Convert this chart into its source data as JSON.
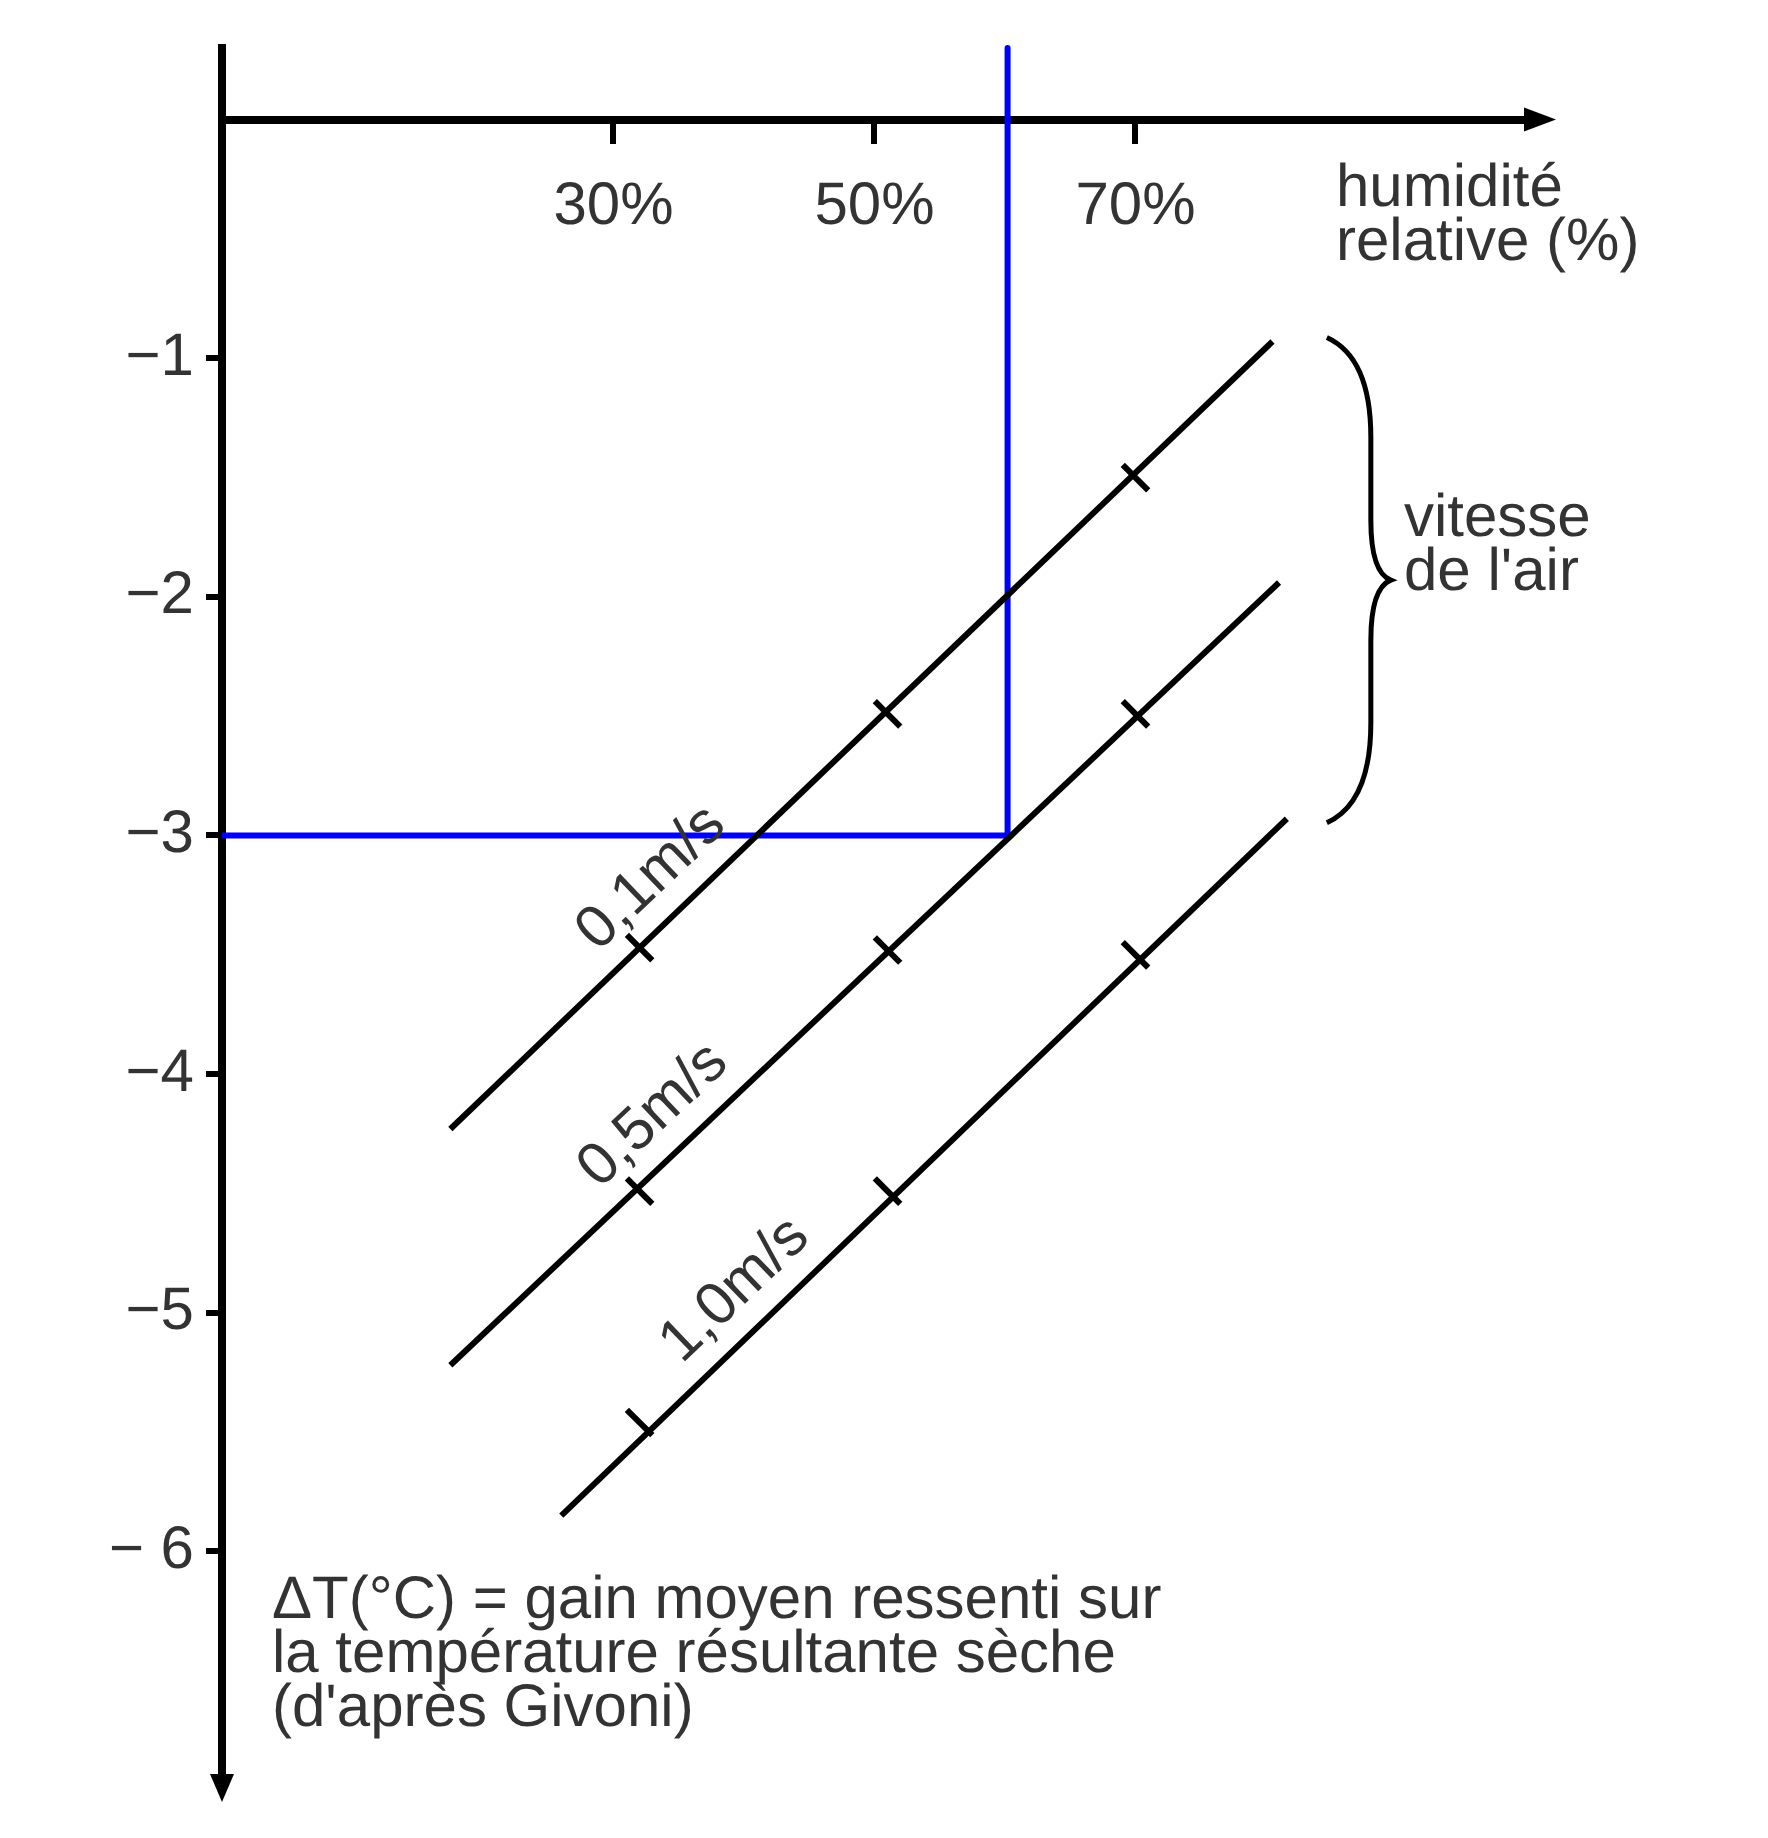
{
  "chart_data": {
    "type": "line",
    "xlabel": "humidité relative (%)",
    "ylabel": "ΔT(°C) = gain moyen ressenti sur la température résultante sèche (d'après Givoni)",
    "annotations": [
      "vitesse de l'air"
    ],
    "xlim": [
      0,
      101
    ],
    "ylim": [
      -7,
      0.3
    ],
    "xticks": [
      {
        "value": 30,
        "label": "30%"
      },
      {
        "value": 50,
        "label": "50%"
      },
      {
        "value": 70,
        "label": "70%"
      }
    ],
    "yticks": [
      {
        "value": -1,
        "label": "−1"
      },
      {
        "value": -2,
        "label": "−2"
      },
      {
        "value": -3,
        "label": "−3"
      },
      {
        "value": -4,
        "label": "−4"
      },
      {
        "value": -5,
        "label": "−5"
      },
      {
        "value": -6,
        "label": "− 6"
      }
    ],
    "grid": false,
    "legend": false,
    "series": [
      {
        "name": "0,1m/s",
        "color": "#000000",
        "x": [
          17.5,
          80.5
        ],
        "values": [
          -4.23,
          -0.93
        ]
      },
      {
        "name": "0,5m/s",
        "color": "#000000",
        "x": [
          17.5,
          81
        ],
        "values": [
          -5.22,
          -1.94
        ]
      },
      {
        "name": "1,0m/s",
        "color": "#000000",
        "x": [
          26,
          81.6
        ],
        "values": [
          -5.85,
          -2.93
        ]
      },
      {
        "type": "scatter",
        "marker": "cross",
        "color": "#000000",
        "x": [
          32,
          51,
          70
        ],
        "values": [
          -3.47,
          -2.49,
          -1.5
        ]
      },
      {
        "type": "scatter",
        "marker": "cross",
        "color": "#000000",
        "x": [
          32,
          51,
          70
        ],
        "values": [
          -4.49,
          -3.48,
          -2.49
        ]
      },
      {
        "type": "scatter",
        "marker": "cross",
        "color": "#000000",
        "x": [
          32,
          51,
          70
        ],
        "values": [
          -5.46,
          -4.49,
          -3.5
        ]
      },
      {
        "color": "#0000ff",
        "x": [
          60.2,
          60.2,
          0
        ],
        "values": [
          0.3,
          -3,
          -3
        ]
      }
    ]
  }
}
